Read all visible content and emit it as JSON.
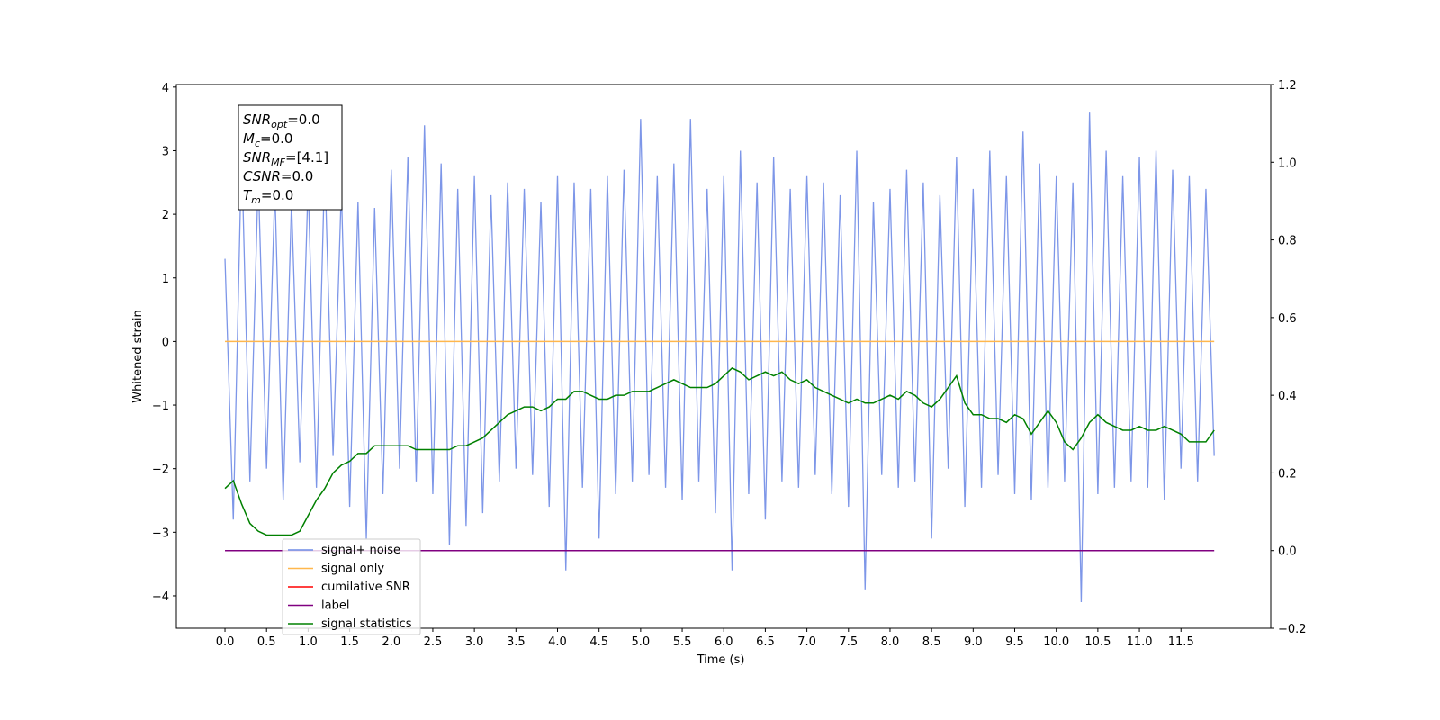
{
  "chart_data": {
    "type": "line",
    "xlabel": "Time (s)",
    "ylabel": "Whitened strain",
    "xlim": [
      -0.585,
      12.58
    ],
    "ylim": [
      -4.51,
      4.04
    ],
    "y2lim": [
      -0.2,
      1.2
    ],
    "xticks": [
      {
        "value": 0,
        "label": "0.0"
      },
      0.5,
      {
        "value": 1,
        "label": "1.0"
      },
      1.5,
      {
        "value": 2,
        "label": "2.0"
      },
      2.5,
      {
        "value": 3,
        "label": "3.0"
      },
      3.5,
      {
        "value": 4,
        "label": "4.0"
      },
      4.5,
      {
        "value": 5,
        "label": "5.0"
      },
      5.5,
      {
        "value": 6,
        "label": "6.0"
      },
      6.5,
      {
        "value": 7,
        "label": "7.0"
      },
      7.5,
      {
        "value": 8,
        "label": "8.0"
      },
      8.5,
      {
        "value": 9,
        "label": "9.0"
      },
      9.5,
      {
        "value": 10,
        "label": "10.0"
      },
      10.5,
      {
        "value": 11,
        "label": "11.0"
      },
      11.5
    ],
    "yticks": [
      {
        "value": -4,
        "label": "−4"
      },
      {
        "value": -3,
        "label": "−3"
      },
      {
        "value": -2,
        "label": "−2"
      },
      {
        "value": -1,
        "label": "−1"
      },
      0,
      1,
      2,
      3,
      4
    ],
    "y2ticks": [
      {
        "value": -0.2,
        "label": "−0.2"
      },
      {
        "value": 0,
        "label": "0.0"
      },
      0.2,
      0.4,
      0.6,
      0.8,
      {
        "value": 1,
        "label": "1.0"
      },
      1.2
    ],
    "legend": "lower left",
    "x": [
      0,
      0.1,
      0.2,
      0.3,
      0.4,
      0.5,
      0.6,
      0.7,
      0.8,
      0.9,
      1,
      1.1,
      1.2,
      1.3,
      1.4,
      1.5,
      1.6,
      1.7,
      1.8,
      1.9,
      2,
      2.1,
      2.2,
      2.3,
      2.4,
      2.5,
      2.6,
      2.7,
      2.8,
      2.9,
      3,
      3.1,
      3.2,
      3.3,
      3.4,
      3.5,
      3.6,
      3.7,
      3.8,
      3.9,
      4,
      4.1,
      4.2,
      4.3,
      4.4,
      4.5,
      4.6,
      4.7,
      4.8,
      4.9,
      5,
      5.1,
      5.2,
      5.3,
      5.4,
      5.5,
      5.6,
      5.7,
      5.8,
      5.9,
      6,
      6.1,
      6.2,
      6.3,
      6.4,
      6.5,
      6.6,
      6.7,
      6.8,
      6.9,
      7,
      7.1,
      7.2,
      7.3,
      7.4,
      7.5,
      7.6,
      7.7,
      7.8,
      7.9,
      8,
      8.1,
      8.2,
      8.3,
      8.4,
      8.5,
      8.6,
      8.7,
      8.8,
      8.9,
      9,
      9.1,
      9.2,
      9.3,
      9.4,
      9.5,
      9.6,
      9.7,
      9.8,
      9.9,
      10,
      10.1,
      10.2,
      10.3,
      10.4,
      10.5,
      10.6,
      10.7,
      10.8,
      10.9,
      11,
      11.1,
      11.2,
      11.3,
      11.4,
      11.5,
      11.6,
      11.7,
      11.8,
      11.9
    ],
    "series": [
      {
        "name": "signal+ noise",
        "color": "#6f8be6",
        "values": [
          1.3,
          -2.8,
          3.0,
          -2.2,
          2.6,
          -2.0,
          2.4,
          -2.5,
          2.2,
          -1.9,
          2.5,
          -2.3,
          2.8,
          -1.8,
          2.4,
          -2.6,
          2.2,
          -3.1,
          2.1,
          -2.4,
          2.7,
          -2.0,
          2.9,
          -2.2,
          3.4,
          -2.4,
          2.8,
          -3.2,
          2.4,
          -2.9,
          2.6,
          -2.7,
          2.3,
          -2.2,
          2.5,
          -2.0,
          2.4,
          -2.1,
          2.2,
          -2.6,
          2.6,
          -3.6,
          2.5,
          -2.3,
          2.4,
          -3.1,
          2.6,
          -2.4,
          2.7,
          -2.2,
          3.5,
          -2.1,
          2.6,
          -2.3,
          2.8,
          -2.5,
          3.5,
          -2.2,
          2.4,
          -2.7,
          2.6,
          -3.6,
          3.0,
          -2.4,
          2.5,
          -2.8,
          2.9,
          -2.2,
          2.4,
          -2.3,
          2.6,
          -2.1,
          2.5,
          -2.4,
          2.3,
          -2.6,
          3.0,
          -3.9,
          2.2,
          -2.1,
          2.4,
          -2.3,
          2.7,
          -2.2,
          2.5,
          -3.1,
          2.3,
          -2.0,
          2.9,
          -2.6,
          2.4,
          -2.3,
          3.0,
          -2.1,
          2.6,
          -2.4,
          3.3,
          -2.5,
          2.8,
          -2.3,
          2.6,
          -2.2,
          2.5,
          -4.1,
          3.6,
          -2.4,
          3.0,
          -2.3,
          2.6,
          -2.2,
          2.9,
          -2.3,
          3.0,
          -2.5,
          2.7,
          -2.0,
          2.6,
          -2.2,
          2.4,
          -1.8
        ]
      },
      {
        "name": "signal only",
        "color": "#ffb74d",
        "x": [
          0,
          11.9
        ],
        "values": [
          0,
          0
        ]
      },
      {
        "name": "cumilative SNR",
        "color": "#ff0000"
      },
      {
        "name": "label",
        "color": "#800080",
        "axis": "y2",
        "x": [
          0,
          11.9
        ],
        "values": [
          0,
          0
        ]
      },
      {
        "name": "signal statistics",
        "color": "#008000",
        "axis": "y2",
        "values": [
          0.16,
          0.18,
          0.12,
          0.07,
          0.05,
          0.04,
          0.04,
          0.04,
          0.04,
          0.05,
          0.09,
          0.13,
          0.16,
          0.2,
          0.22,
          0.23,
          0.25,
          0.25,
          0.27,
          0.27,
          0.27,
          0.27,
          0.27,
          0.26,
          0.26,
          0.26,
          0.26,
          0.26,
          0.27,
          0.27,
          0.28,
          0.29,
          0.31,
          0.33,
          0.35,
          0.36,
          0.37,
          0.37,
          0.36,
          0.37,
          0.39,
          0.39,
          0.41,
          0.41,
          0.4,
          0.39,
          0.39,
          0.4,
          0.4,
          0.41,
          0.41,
          0.41,
          0.42,
          0.43,
          0.44,
          0.43,
          0.42,
          0.42,
          0.42,
          0.43,
          0.45,
          0.47,
          0.46,
          0.44,
          0.45,
          0.46,
          0.45,
          0.46,
          0.44,
          0.43,
          0.44,
          0.42,
          0.41,
          0.4,
          0.39,
          0.38,
          0.39,
          0.38,
          0.38,
          0.39,
          0.4,
          0.39,
          0.41,
          0.4,
          0.38,
          0.37,
          0.39,
          0.42,
          0.45,
          0.38,
          0.35,
          0.35,
          0.34,
          0.34,
          0.33,
          0.35,
          0.34,
          0.3,
          0.33,
          0.36,
          0.33,
          0.28,
          0.26,
          0.29,
          0.33,
          0.35,
          0.33,
          0.32,
          0.31,
          0.31,
          0.32,
          0.31,
          0.31,
          0.32,
          0.31,
          0.3,
          0.28,
          0.28,
          0.28,
          0.31
        ]
      }
    ],
    "annotation": [
      {
        "base": "SNR",
        "sub": "opt",
        "text": "=0.0"
      },
      {
        "base": "M",
        "sub": "c",
        "text": "=0.0"
      },
      {
        "base": "SNR",
        "sub": "MF",
        "text": "=[4.1]"
      },
      {
        "base": "CSNR",
        "text": "=0.0"
      },
      {
        "base": "T",
        "sub": "m",
        "text": "=0.0"
      }
    ]
  }
}
